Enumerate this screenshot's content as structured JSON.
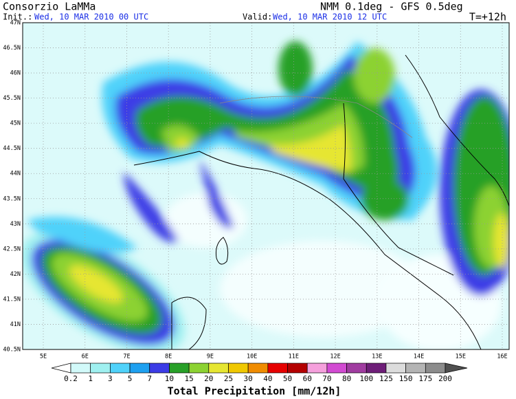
{
  "header": {
    "title": "Consorzio LaMMa",
    "model": "NMM 0.1deg - GFS 0.5deg",
    "init_label": "Init.:",
    "init": "Wed, 10 MAR 2010  00 UTC",
    "valid_label": "Valid:",
    "valid": "Wed, 10 MAR 2010  12 UTC",
    "lead": "T=+12h"
  },
  "map": {
    "lat_labels": [
      "47N",
      "46.5N",
      "46N",
      "45.5N",
      "45N",
      "44.5N",
      "44N",
      "43.5N",
      "43N",
      "42.5N",
      "42N",
      "41.5N",
      "41N",
      "40.5N"
    ],
    "lon_labels": [
      "5E",
      "6E",
      "7E",
      "8E",
      "9E",
      "10E",
      "11E",
      "12E",
      "13E",
      "14E",
      "15E",
      "16E"
    ]
  },
  "legend": {
    "title": "Total Precipitation [mm/12h]",
    "labels": [
      "0.2",
      "1",
      "3",
      "5",
      "7",
      "10",
      "15",
      "20",
      "25",
      "30",
      "40",
      "50",
      "60",
      "70",
      "80",
      "100",
      "125",
      "150",
      "175",
      "200"
    ],
    "colors": [
      "#ffffff",
      "#d2fafa",
      "#9ff0f0",
      "#50d2fa",
      "#1ea0f0",
      "#3c3ce6",
      "#28a028",
      "#8cd232",
      "#e6e632",
      "#f0c800",
      "#f08c00",
      "#e60000",
      "#b40000",
      "#f5a0dc",
      "#d24bd2",
      "#a03ca0",
      "#6e1e78",
      "#dcdcdc",
      "#b4b4b4",
      "#8c8c8c",
      "#6e6e6e",
      "#505050"
    ]
  }
}
